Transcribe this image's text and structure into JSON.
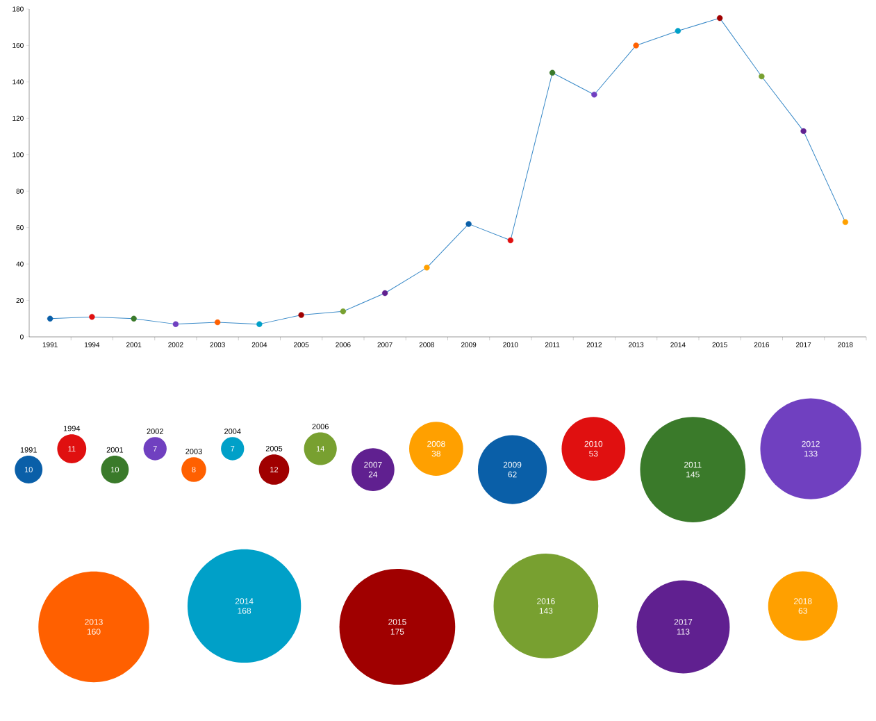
{
  "chart_data": [
    {
      "type": "line",
      "categories": [
        "1991",
        "1994",
        "2001",
        "2002",
        "2003",
        "2004",
        "2005",
        "2006",
        "2007",
        "2008",
        "2009",
        "2010",
        "2011",
        "2012",
        "2013",
        "2014",
        "2015",
        "2016",
        "2017",
        "2018"
      ],
      "series": [
        {
          "color": "#3a8ac8",
          "values": [
            10,
            11,
            10,
            7,
            8,
            7,
            12,
            14,
            24,
            38,
            62,
            53,
            145,
            133,
            160,
            168,
            175,
            143,
            113,
            63
          ],
          "colors": [
            "#0a5fa8",
            "#e01010",
            "#3a7a2a",
            "#7040c0",
            "#ff6000",
            "#00a0c8",
            "#a00000",
            "#78a030",
            "#602090",
            "#ffa000",
            "#0a5fa8",
            "#e01010",
            "#3a7a2a",
            "#7040c0",
            "#ff6000",
            "#00a0c8",
            "#a00000",
            "#78a030",
            "#602090",
            "#ffa000"
          ]
        }
      ],
      "ylim": [
        0,
        180
      ],
      "yticks": [
        0,
        20,
        40,
        60,
        80,
        100,
        120,
        140,
        160,
        180
      ],
      "marker": "circle",
      "line_style": "solid"
    },
    {
      "type": "other",
      "categories": [
        "1991",
        "1994",
        "2001",
        "2002",
        "2003",
        "2004",
        "2005",
        "2006",
        "2007",
        "2008",
        "2009",
        "2010",
        "2011",
        "2012",
        "2013",
        "2014",
        "2015",
        "2016",
        "2017",
        "2018"
      ],
      "values": [
        10,
        11,
        10,
        7,
        8,
        7,
        12,
        14,
        24,
        38,
        62,
        53,
        145,
        133,
        160,
        168,
        175,
        143,
        113,
        63
      ],
      "colors": [
        "#0a5fa8",
        "#e01010",
        "#3a7a2a",
        "#7040c0",
        "#ff6000",
        "#00a0c8",
        "#a00000",
        "#78a030",
        "#602090",
        "#ffa000",
        "#0a5fa8",
        "#e01010",
        "#3a7a2a",
        "#7040c0",
        "#ff6000",
        "#00a0c8",
        "#a00000",
        "#78a030",
        "#602090",
        "#ffa000"
      ],
      "data_labels": true
    }
  ]
}
